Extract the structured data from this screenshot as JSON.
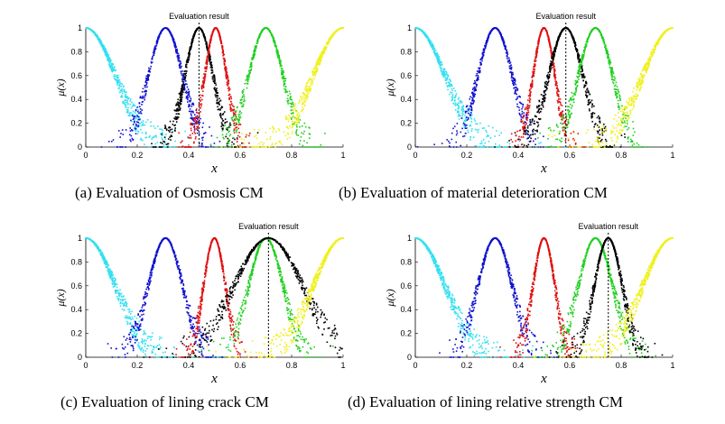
{
  "chart_data": [
    {
      "type": "scatter",
      "title": "",
      "xlabel": "x",
      "ylabel": "μ(x)",
      "xlim": [
        0,
        1
      ],
      "ylim": [
        0,
        1
      ],
      "xticks": [
        "0",
        "0.2",
        "0.4",
        "0.6",
        "0.8",
        "1"
      ],
      "yticks": [
        "0",
        "0.2",
        "0.4",
        "0.6",
        "0.8",
        "1"
      ],
      "annotation": "Evaluation result",
      "evaluation_x": 0.44,
      "caption": "(a) Evaluation of Osmosis CM",
      "series": [
        {
          "name": "cyan",
          "color": "#33e0f0",
          "shape": "half-right",
          "center": 0.0,
          "sigma": 0.095
        },
        {
          "name": "blue",
          "color": "#1010d0",
          "shape": "gauss",
          "center": 0.31,
          "sigma": 0.055
        },
        {
          "name": "black",
          "color": "#000000",
          "shape": "gauss",
          "center": 0.44,
          "sigma": 0.045
        },
        {
          "name": "red",
          "color": "#e01010",
          "shape": "gauss",
          "center": 0.505,
          "sigma": 0.035
        },
        {
          "name": "green",
          "color": "#20d020",
          "shape": "gauss",
          "center": 0.7,
          "sigma": 0.055
        },
        {
          "name": "yellow",
          "color": "#f0f020",
          "shape": "half-left",
          "center": 1.0,
          "sigma": 0.095
        }
      ]
    },
    {
      "type": "scatter",
      "title": "",
      "xlabel": "x",
      "ylabel": "μ(x)",
      "xlim": [
        0,
        1
      ],
      "ylim": [
        0,
        1
      ],
      "xticks": [
        "0",
        "0.2",
        "0.4",
        "0.6",
        "0.8",
        "1"
      ],
      "yticks": [
        "0",
        "0.2",
        "0.4",
        "0.6",
        "0.8",
        "1"
      ],
      "annotation": "Evaluation result",
      "evaluation_x": 0.585,
      "caption": "(b) Evaluation of material deterioration CM",
      "series": [
        {
          "name": "cyan",
          "color": "#33e0f0",
          "shape": "half-right",
          "center": 0.0,
          "sigma": 0.095
        },
        {
          "name": "blue",
          "color": "#1010d0",
          "shape": "gauss",
          "center": 0.31,
          "sigma": 0.055
        },
        {
          "name": "red",
          "color": "#e01010",
          "shape": "gauss",
          "center": 0.5,
          "sigma": 0.035
        },
        {
          "name": "black",
          "color": "#000000",
          "shape": "gauss",
          "center": 0.585,
          "sigma": 0.055
        },
        {
          "name": "green",
          "color": "#20d020",
          "shape": "gauss",
          "center": 0.7,
          "sigma": 0.055
        },
        {
          "name": "yellow",
          "color": "#f0f020",
          "shape": "half-left",
          "center": 1.0,
          "sigma": 0.095
        }
      ]
    },
    {
      "type": "scatter",
      "title": "",
      "xlabel": "x",
      "ylabel": "μ(x)",
      "xlim": [
        0,
        1
      ],
      "ylim": [
        0,
        1
      ],
      "xticks": [
        "0",
        "0.2",
        "0.4",
        "0.6",
        "0.8",
        "1"
      ],
      "yticks": [
        "0",
        "0.2",
        "0.4",
        "0.6",
        "0.8",
        "1"
      ],
      "annotation": "Evaluation result",
      "evaluation_x": 0.71,
      "caption": "(c) Evaluation of lining crack CM",
      "series": [
        {
          "name": "cyan",
          "color": "#33e0f0",
          "shape": "half-right",
          "center": 0.0,
          "sigma": 0.095
        },
        {
          "name": "blue",
          "color": "#1010d0",
          "shape": "gauss",
          "center": 0.31,
          "sigma": 0.055
        },
        {
          "name": "red",
          "color": "#e01010",
          "shape": "gauss",
          "center": 0.5,
          "sigma": 0.035
        },
        {
          "name": "green",
          "color": "#20d020",
          "shape": "gauss",
          "center": 0.7,
          "sigma": 0.055
        },
        {
          "name": "black",
          "color": "#000000",
          "shape": "gauss",
          "center": 0.71,
          "sigma": 0.11
        },
        {
          "name": "yellow",
          "color": "#f0f020",
          "shape": "half-left",
          "center": 1.0,
          "sigma": 0.095
        }
      ]
    },
    {
      "type": "scatter",
      "title": "",
      "xlabel": "x",
      "ylabel": "μ(x)",
      "xlim": [
        0,
        1
      ],
      "ylim": [
        0,
        1
      ],
      "xticks": [
        "0",
        "0.2",
        "0.4",
        "0.6",
        "0.8",
        "1"
      ],
      "yticks": [
        "0",
        "0.2",
        "0.4",
        "0.6",
        "0.8",
        "1"
      ],
      "annotation": "Evaluation result",
      "evaluation_x": 0.75,
      "caption": "(d) Evaluation of lining relative strength CM",
      "series": [
        {
          "name": "cyan",
          "color": "#33e0f0",
          "shape": "half-right",
          "center": 0.0,
          "sigma": 0.095
        },
        {
          "name": "blue",
          "color": "#1010d0",
          "shape": "gauss",
          "center": 0.31,
          "sigma": 0.055
        },
        {
          "name": "red",
          "color": "#e01010",
          "shape": "gauss",
          "center": 0.5,
          "sigma": 0.035
        },
        {
          "name": "green",
          "color": "#20d020",
          "shape": "gauss",
          "center": 0.7,
          "sigma": 0.055
        },
        {
          "name": "black",
          "color": "#000000",
          "shape": "gauss",
          "center": 0.75,
          "sigma": 0.045
        },
        {
          "name": "yellow",
          "color": "#f0f020",
          "shape": "half-left",
          "center": 1.0,
          "sigma": 0.095
        }
      ]
    }
  ]
}
